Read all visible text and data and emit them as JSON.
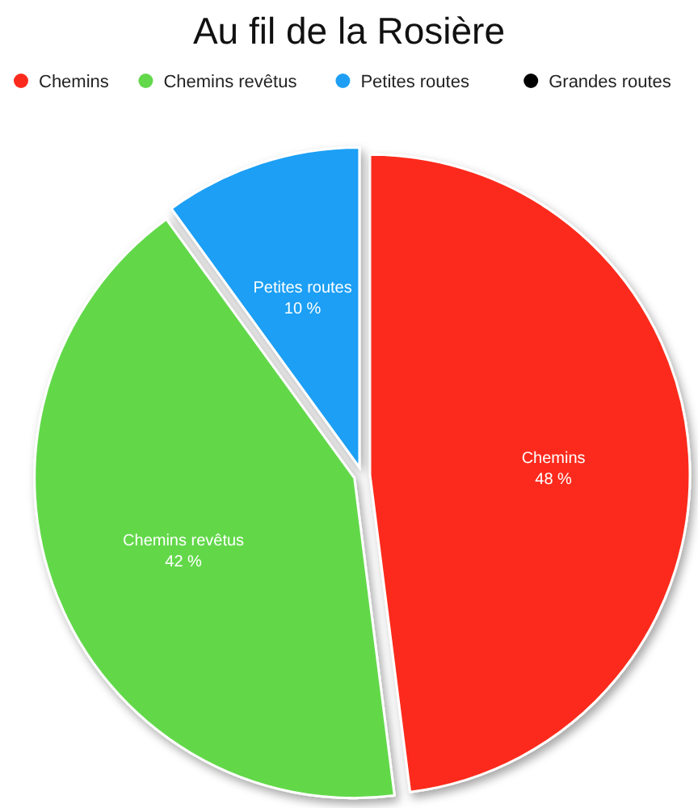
{
  "chart_data": {
    "type": "pie",
    "title": "Au fil de la Rosière",
    "categories": [
      "Chemins",
      "Chemins revêtus",
      "Petites routes",
      "Grandes routes"
    ],
    "values": [
      48,
      42,
      10,
      0
    ],
    "colors": [
      "#fc2a1c",
      "#62d84a",
      "#1e9ff5",
      "#000000"
    ],
    "value_labels": [
      "48 %",
      "42 %",
      "10 %",
      null
    ],
    "legend": "top"
  }
}
